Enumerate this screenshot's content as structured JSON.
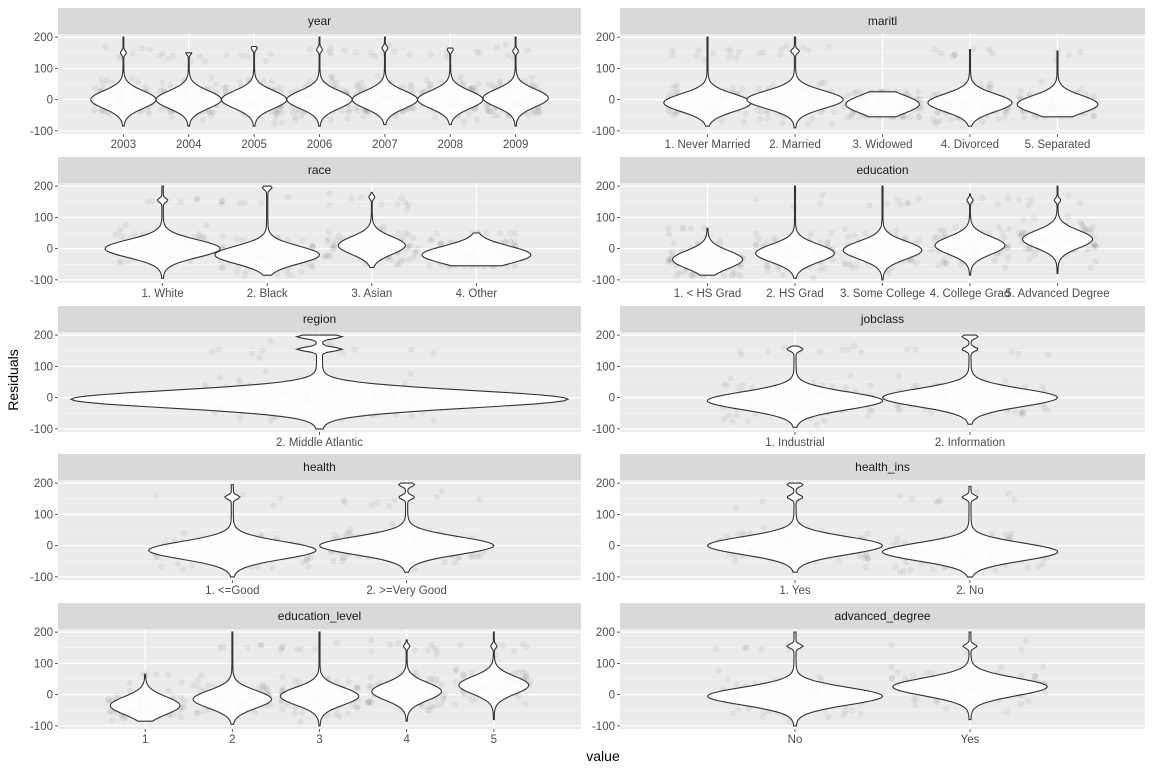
{
  "chart_data": {
    "type": "violin",
    "xlabel": "value",
    "ylabel": "Residuals",
    "ylim": [
      -110,
      210
    ],
    "yticks": [
      -100,
      0,
      100,
      200
    ],
    "grid": true,
    "colors": {
      "panel_bg": "#ebebeb",
      "strip_bg": "#d9d9d9",
      "grid": "#ffffff",
      "violin_fill": "#ffffff",
      "violin_stroke": "#333333",
      "points": "#000000"
    },
    "facets": [
      {
        "title": "year",
        "categories": [
          "2003",
          "2004",
          "2005",
          "2006",
          "2007",
          "2008",
          "2009"
        ],
        "violins": [
          {
            "min": -85,
            "max": 200,
            "center": 0,
            "width": 0.5,
            "modes": [
              150
            ]
          },
          {
            "min": -85,
            "max": 150,
            "center": 0,
            "width": 0.5,
            "modes": [
              150
            ]
          },
          {
            "min": -85,
            "max": 170,
            "center": 0,
            "width": 0.5,
            "modes": [
              165
            ]
          },
          {
            "min": -85,
            "max": 200,
            "center": 0,
            "width": 0.5,
            "modes": [
              160
            ]
          },
          {
            "min": -80,
            "max": 200,
            "center": 0,
            "width": 0.5,
            "modes": [
              165
            ]
          },
          {
            "min": -80,
            "max": 165,
            "center": 0,
            "width": 0.5,
            "modes": [
              160
            ]
          },
          {
            "min": -85,
            "max": 200,
            "center": 5,
            "width": 0.5,
            "modes": [
              155
            ]
          }
        ]
      },
      {
        "title": "maritl",
        "categories": [
          "1. Never Married",
          "2. Married",
          "3. Widowed",
          "4. Divorced",
          "5. Separated"
        ],
        "violins": [
          {
            "min": -85,
            "max": 200,
            "center": -10,
            "width": 0.5,
            "modes": []
          },
          {
            "min": -90,
            "max": 200,
            "center": 0,
            "width": 0.55,
            "modes": [
              155
            ]
          },
          {
            "min": -55,
            "max": 25,
            "center": -15,
            "width": 0.42,
            "modes": []
          },
          {
            "min": -85,
            "max": 160,
            "center": -10,
            "width": 0.48,
            "modes": []
          },
          {
            "min": -55,
            "max": 155,
            "center": -15,
            "width": 0.46,
            "modes": []
          }
        ]
      },
      {
        "title": "race",
        "categories": [
          "1. White",
          "2. Black",
          "3. Asian",
          "4. Other"
        ],
        "violins": [
          {
            "min": -95,
            "max": 200,
            "center": 0,
            "width": 0.55,
            "modes": [
              155
            ]
          },
          {
            "min": -85,
            "max": 200,
            "center": -20,
            "width": 0.5,
            "modes": [
              195
            ]
          },
          {
            "min": -60,
            "max": 180,
            "center": 10,
            "width": 0.32,
            "modes": [
              165
            ]
          },
          {
            "min": -55,
            "max": 50,
            "center": -20,
            "width": 0.52,
            "modes": []
          }
        ]
      },
      {
        "title": "education",
        "categories": [
          "1. < HS Grad",
          "2. HS Grad",
          "3. Some College",
          "4. College Grad",
          "5. Advanced Degree"
        ],
        "violins": [
          {
            "min": -85,
            "max": 65,
            "center": -35,
            "width": 0.4,
            "modes": []
          },
          {
            "min": -95,
            "max": 200,
            "center": -15,
            "width": 0.45,
            "modes": []
          },
          {
            "min": -100,
            "max": 200,
            "center": -5,
            "width": 0.45,
            "modes": []
          },
          {
            "min": -85,
            "max": 175,
            "center": 10,
            "width": 0.4,
            "modes": [
              155
            ]
          },
          {
            "min": -80,
            "max": 200,
            "center": 30,
            "width": 0.4,
            "modes": [
              155
            ]
          }
        ]
      },
      {
        "title": "region",
        "categories": [
          "2. Middle Atlantic"
        ],
        "violins": [
          {
            "min": -100,
            "max": 200,
            "center": -5,
            "width": 0.95,
            "modes": [
              155,
              195
            ]
          }
        ]
      },
      {
        "title": "jobclass",
        "categories": [
          "1. Industrial",
          "2. Information"
        ],
        "violins": [
          {
            "min": -95,
            "max": 165,
            "center": -10,
            "width": 0.5,
            "modes": [
              155
            ]
          },
          {
            "min": -85,
            "max": 200,
            "center": 0,
            "width": 0.5,
            "modes": [
              155,
              195
            ]
          }
        ]
      },
      {
        "title": "health",
        "categories": [
          "1. <=Good",
          "2. >=Very Good"
        ],
        "violins": [
          {
            "min": -100,
            "max": 195,
            "center": -15,
            "width": 0.48,
            "modes": [
              155
            ]
          },
          {
            "min": -85,
            "max": 200,
            "center": 0,
            "width": 0.5,
            "modes": [
              155,
              195
            ]
          }
        ]
      },
      {
        "title": "health_ins",
        "categories": [
          "1. Yes",
          "2. No"
        ],
        "violins": [
          {
            "min": -85,
            "max": 200,
            "center": 0,
            "width": 0.5,
            "modes": [
              155,
              195
            ]
          },
          {
            "min": -100,
            "max": 190,
            "center": -20,
            "width": 0.5,
            "modes": [
              155
            ]
          }
        ]
      },
      {
        "title": "education_level",
        "categories": [
          "1",
          "2",
          "3",
          "4",
          "5"
        ],
        "violins": [
          {
            "min": -85,
            "max": 65,
            "center": -35,
            "width": 0.4,
            "modes": []
          },
          {
            "min": -95,
            "max": 200,
            "center": -15,
            "width": 0.45,
            "modes": []
          },
          {
            "min": -100,
            "max": 200,
            "center": -5,
            "width": 0.45,
            "modes": []
          },
          {
            "min": -85,
            "max": 175,
            "center": 10,
            "width": 0.4,
            "modes": [
              155
            ]
          },
          {
            "min": -80,
            "max": 200,
            "center": 30,
            "width": 0.4,
            "modes": [
              155
            ]
          }
        ]
      },
      {
        "title": "advanced_degree",
        "categories": [
          "No",
          "Yes"
        ],
        "violins": [
          {
            "min": -100,
            "max": 200,
            "center": -5,
            "width": 0.5,
            "modes": [
              155
            ]
          },
          {
            "min": -80,
            "max": 200,
            "center": 25,
            "width": 0.44,
            "modes": [
              155
            ]
          }
        ]
      }
    ]
  }
}
